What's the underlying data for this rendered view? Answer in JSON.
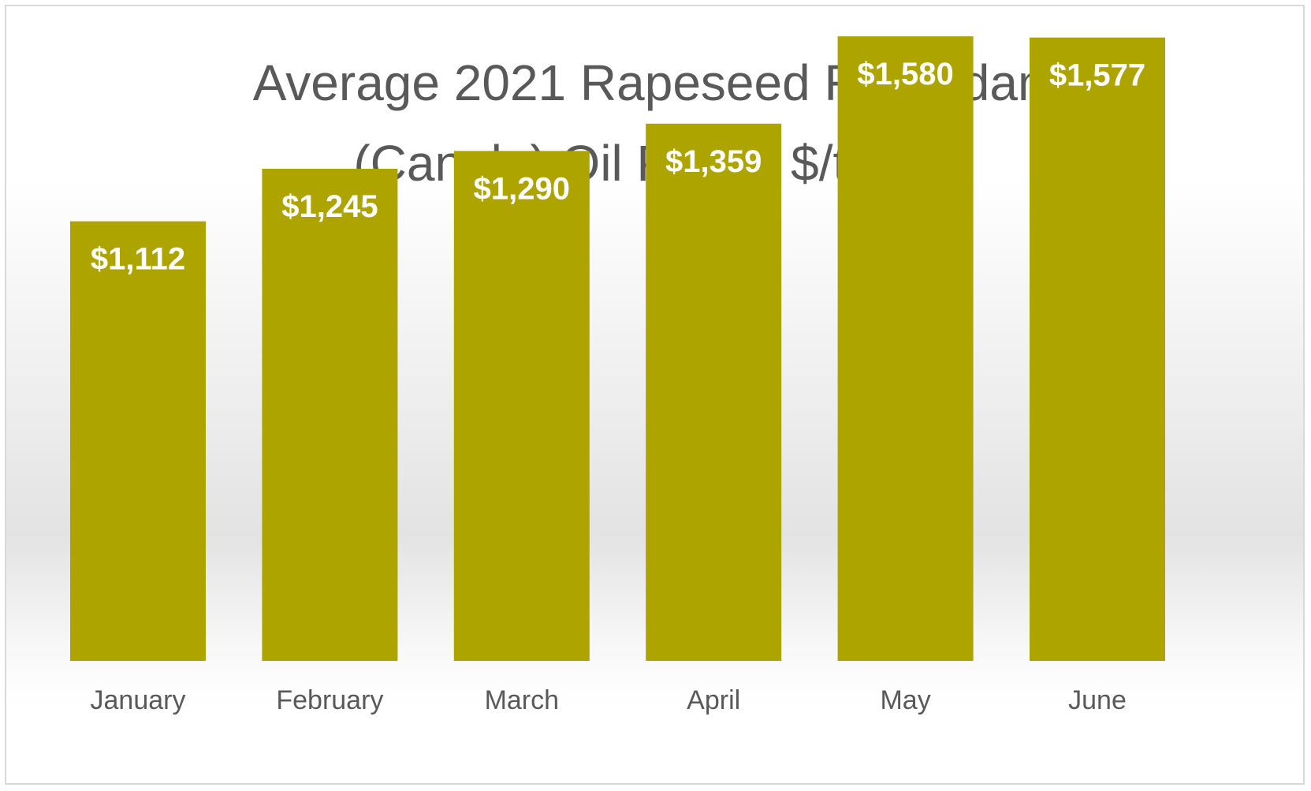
{
  "chart_data": {
    "type": "bar",
    "title_lines": [
      "Average 2021 Rapeseed Rotterdam",
      "(Canola) Oil Prices $/tonne"
    ],
    "categories": [
      "January",
      "February",
      "March",
      "April",
      "May",
      "June"
    ],
    "values": [
      1112,
      1245,
      1290,
      1359,
      1580,
      1577
    ],
    "data_labels": [
      "$1,112",
      "$1,245",
      "$1,290",
      "$1,359",
      "$1,580",
      "$1,577"
    ],
    "xlabel": "",
    "ylabel": "",
    "ylim": [
      0,
      1640
    ],
    "grid": false,
    "legend": "none",
    "colors": {
      "bar": "#aea400",
      "title": "#595959",
      "tick_label": "#595959",
      "data_label": "#ffffff"
    }
  }
}
